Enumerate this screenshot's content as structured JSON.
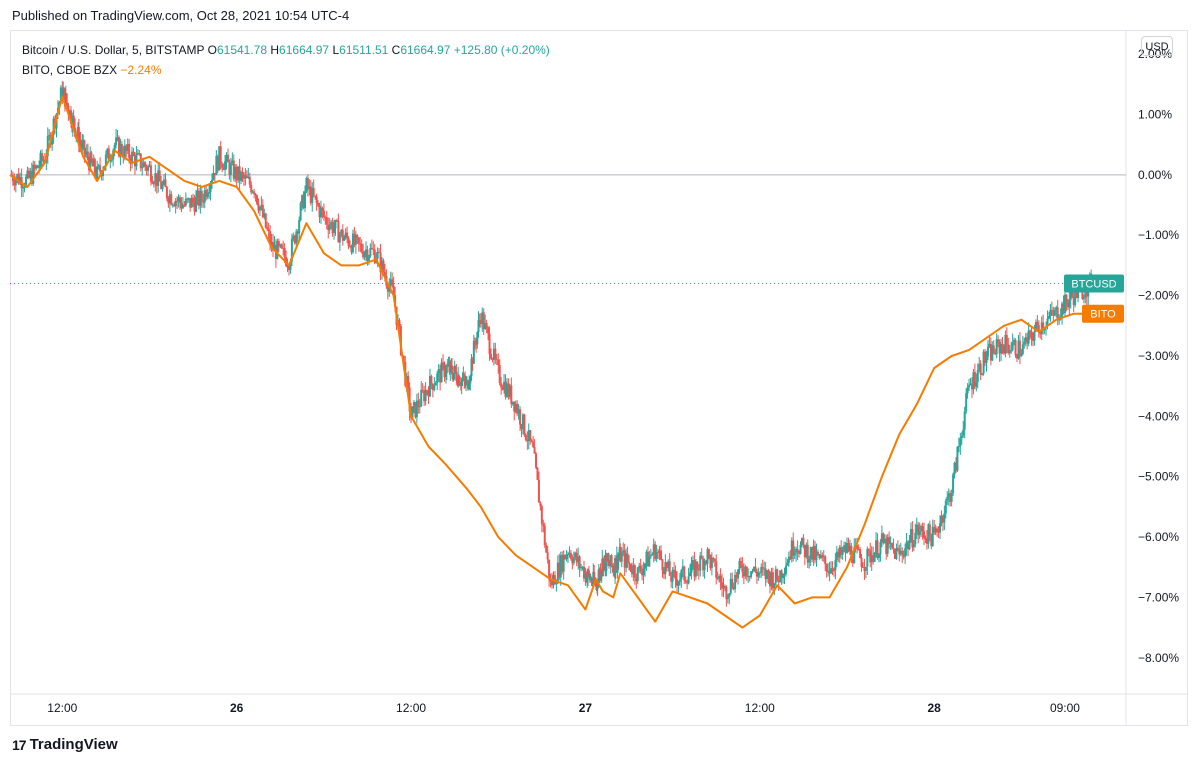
{
  "header": {
    "published": "Published on TradingView.com, Oct 28, 2021 10:54 UTC-4"
  },
  "legend": {
    "btc_name": "Bitcoin / U.S. Dollar, 5, BITSTAMP",
    "o_label": "O",
    "o_value": "61541.78",
    "h_label": "H",
    "h_value": "61664.97",
    "l_label": "L",
    "l_value": "61511.51",
    "c_label": "C",
    "c_value": "61664.97",
    "change": "+125.80 (+0.20%)",
    "bito_name": "BITO, CBOE BZX",
    "bito_change": "−2.24%"
  },
  "currency_button": "USD",
  "brand": {
    "name": "TradingView",
    "logo": "17"
  },
  "colors": {
    "up": "#26a69a",
    "down": "#ef5350",
    "bito": "#f57c00",
    "grid_zero": "#b2b5be",
    "tag_btc": "#26a69a",
    "tag_bito": "#f57c00"
  },
  "chart_data": {
    "type": "line",
    "y_unit": "%",
    "ylim": [
      -8.6,
      2.4
    ],
    "y_ticks": [
      "2.00%",
      "1.00%",
      "0.00%",
      "−1.00%",
      "−2.00%",
      "−3.00%",
      "−4.00%",
      "−5.00%",
      "−6.00%",
      "−7.00%",
      "−8.00%"
    ],
    "y_tick_values": [
      2,
      1,
      0,
      -1,
      -2,
      -3,
      -4,
      -5,
      -6,
      -7,
      -8
    ],
    "x_ticks": [
      "12:00",
      "26",
      "12:00",
      "27",
      "12:00",
      "28",
      "09:00"
    ],
    "x_tick_bold": [
      false,
      true,
      false,
      true,
      false,
      true,
      false
    ],
    "x_tick_positions": [
      0.5,
      1.0,
      1.5,
      2.0,
      2.5,
      3.0,
      3.375
    ],
    "x_range": [
      0.35,
      3.55
    ],
    "zero_line": 0,
    "last_value_btc": -1.8,
    "series": [
      {
        "name": "BTCUSD",
        "type": "candlestick",
        "x": [
          0.35,
          0.4,
          0.45,
          0.5,
          0.53,
          0.56,
          0.6,
          0.65,
          0.7,
          0.75,
          0.8,
          0.85,
          0.9,
          0.95,
          1.0,
          1.05,
          1.1,
          1.15,
          1.2,
          1.25,
          1.3,
          1.35,
          1.4,
          1.45,
          1.5,
          1.55,
          1.6,
          1.63,
          1.66,
          1.7,
          1.75,
          1.8,
          1.85,
          1.9,
          1.95,
          2.0,
          2.03,
          2.05,
          2.08,
          2.1,
          2.15,
          2.2,
          2.25,
          2.3,
          2.35,
          2.4,
          2.45,
          2.5,
          2.55,
          2.6,
          2.65,
          2.7,
          2.75,
          2.8,
          2.85,
          2.9,
          2.95,
          3.0,
          3.05,
          3.1,
          3.15,
          3.2,
          3.25,
          3.3,
          3.35,
          3.4,
          3.45
        ],
        "values": [
          0.0,
          -0.1,
          0.3,
          1.4,
          0.9,
          0.4,
          0.0,
          0.5,
          0.3,
          0.1,
          -0.3,
          -0.5,
          -0.4,
          0.3,
          0.0,
          -0.2,
          -1.2,
          -1.4,
          -0.2,
          -0.7,
          -1.0,
          -1.2,
          -1.3,
          -2.0,
          -4.0,
          -3.5,
          -3.2,
          -3.3,
          -3.5,
          -2.3,
          -3.3,
          -3.8,
          -4.6,
          -6.8,
          -6.2,
          -6.6,
          -6.8,
          -6.4,
          -6.5,
          -6.3,
          -6.6,
          -6.2,
          -6.7,
          -6.6,
          -6.3,
          -6.9,
          -6.5,
          -6.6,
          -6.7,
          -6.1,
          -6.3,
          -6.5,
          -6.2,
          -6.4,
          -6.1,
          -6.3,
          -5.9,
          -6.0,
          -5.2,
          -3.5,
          -3.0,
          -2.8,
          -2.9,
          -2.5,
          -2.3,
          -2.0,
          -1.8
        ]
      },
      {
        "name": "BITO",
        "type": "line",
        "x": [
          0.35,
          0.4,
          0.45,
          0.5,
          0.53,
          0.56,
          0.6,
          0.65,
          0.7,
          0.75,
          0.8,
          0.85,
          0.9,
          0.95,
          1.0,
          1.05,
          1.1,
          1.15,
          1.2,
          1.25,
          1.3,
          1.35,
          1.4,
          1.45,
          1.5,
          1.55,
          1.6,
          1.63,
          1.66,
          1.7,
          1.75,
          1.8,
          1.85,
          1.9,
          1.95,
          2.0,
          2.03,
          2.05,
          2.08,
          2.1,
          2.15,
          2.2,
          2.25,
          2.3,
          2.35,
          2.4,
          2.45,
          2.5,
          2.55,
          2.6,
          2.65,
          2.7,
          2.75,
          2.8,
          2.85,
          2.9,
          2.95,
          3.0,
          3.05,
          3.1,
          3.15,
          3.2,
          3.25,
          3.3,
          3.35,
          3.4,
          3.45
        ],
        "values": [
          0.0,
          -0.2,
          0.2,
          1.3,
          0.8,
          0.3,
          -0.1,
          0.4,
          0.2,
          0.3,
          0.1,
          -0.1,
          -0.2,
          -0.1,
          -0.2,
          -0.6,
          -1.2,
          -1.5,
          -0.8,
          -1.3,
          -1.5,
          -1.5,
          -1.4,
          -2.0,
          -4.0,
          -4.5,
          -4.8,
          -5.0,
          -5.2,
          -5.5,
          -6.0,
          -6.3,
          -6.5,
          -6.7,
          -6.8,
          -7.2,
          -6.7,
          -6.9,
          -7.0,
          -6.6,
          -7.0,
          -7.4,
          -6.9,
          -7.0,
          -7.1,
          -7.3,
          -7.5,
          -7.3,
          -6.8,
          -7.1,
          -7.0,
          -7.0,
          -6.5,
          -5.8,
          -5.0,
          -4.3,
          -3.8,
          -3.2,
          -3.0,
          -2.9,
          -2.7,
          -2.5,
          -2.4,
          -2.6,
          -2.4,
          -2.3,
          -2.3
        ]
      }
    ]
  },
  "tags": {
    "btc": "BTCUSD",
    "bito": "BITO"
  }
}
